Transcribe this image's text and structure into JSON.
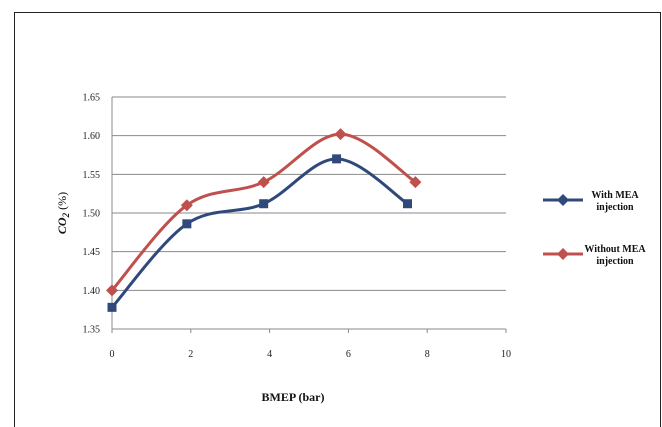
{
  "chart_data": {
    "type": "line",
    "xlabel": "BMEP (bar)",
    "ylabel": "CO2 (%)",
    "ylabel_main": "CO",
    "ylabel_sub": "2",
    "ylabel_unit": " (%)",
    "xlim": [
      0,
      10
    ],
    "ylim": [
      1.35,
      1.65
    ],
    "xticks": [
      "0",
      "2",
      "4",
      "6",
      "8",
      "10"
    ],
    "yticks": [
      "1.35",
      "1.40",
      "1.45",
      "1.50",
      "1.55",
      "1.60",
      "1.65"
    ],
    "grid": "horizontal",
    "legend_position": "right",
    "series": [
      {
        "name": "With MEA injection",
        "legend_lines": [
          "With MEA",
          "injection"
        ],
        "color": "#2f4a7a",
        "marker": "square",
        "x": [
          0,
          1.9,
          3.85,
          5.7,
          7.5
        ],
        "y": [
          1.378,
          1.486,
          1.512,
          1.57,
          1.512
        ]
      },
      {
        "name": "Without MEA injection",
        "legend_lines": [
          "Without MEA",
          "injection"
        ],
        "color": "#c0504d",
        "marker": "diamond",
        "x": [
          0,
          1.9,
          3.85,
          5.8,
          7.7
        ],
        "y": [
          1.4,
          1.51,
          1.54,
          1.602,
          1.54
        ]
      }
    ]
  }
}
